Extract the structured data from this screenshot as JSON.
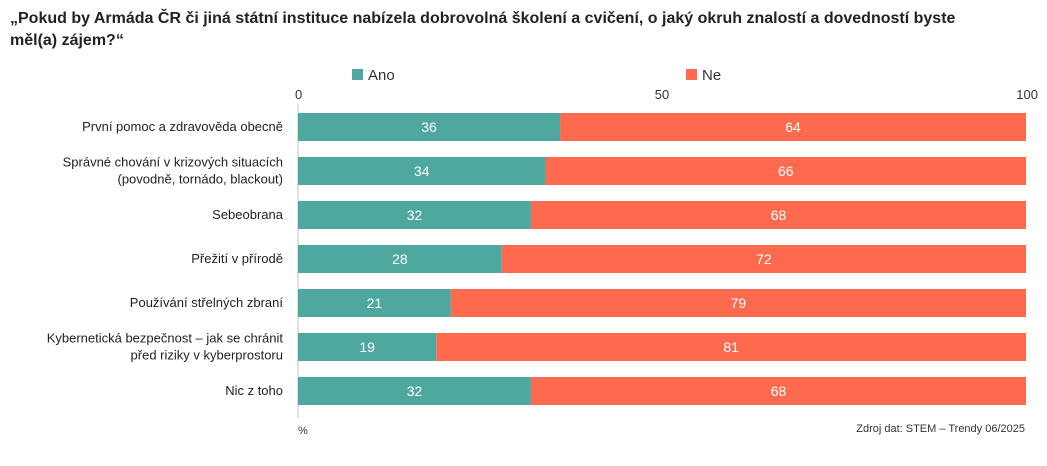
{
  "title": "„Pokud by Armáda ČR či jiná státní instituce nabízela dobrovolná školení a cvičení, o jaký okruh znalostí a dovedností byste měl(a) zájem?“",
  "source": "Zdroj dat: STEM – Trendy 06/2025",
  "unit_label": "%",
  "colors": {
    "ano": "#4ea89f",
    "ne": "#fd6a4e",
    "axis": "#bfbfbf",
    "text": "#333333"
  },
  "chart_data": {
    "type": "bar",
    "orientation": "horizontal",
    "stacked": true,
    "xlim": [
      0,
      100
    ],
    "ticks": [
      0,
      50,
      100
    ],
    "legend_position": "top",
    "categories": [
      [
        "První pomoc a zdravověda obecně"
      ],
      [
        "Správné chování v krizových situacích",
        "(povodně, tornádo, blackout)"
      ],
      [
        "Sebeobrana"
      ],
      [
        "Přežití v přírodě"
      ],
      [
        "Používání střelných zbraní"
      ],
      [
        "Kybernetická bezpečnost – jak se chránit",
        "před riziky v kyberprostoru"
      ],
      [
        "Nic z toho"
      ]
    ],
    "series": [
      {
        "name": "Ano",
        "values": [
          36,
          34,
          32,
          28,
          21,
          19,
          32
        ]
      },
      {
        "name": "Ne",
        "values": [
          64,
          66,
          68,
          72,
          79,
          81,
          68
        ]
      }
    ]
  }
}
